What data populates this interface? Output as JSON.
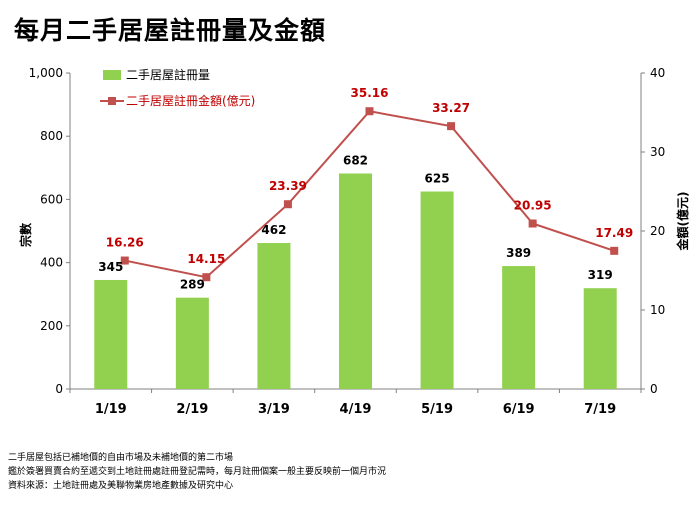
{
  "page_title": "每月二手居屋註冊量及金額",
  "chart_data": {
    "type": "bar",
    "categories": [
      "1/19",
      "2/19",
      "3/19",
      "4/19",
      "5/19",
      "6/19",
      "7/19"
    ],
    "series": [
      {
        "name": "二手居屋註冊量",
        "type": "bar",
        "axis": "left",
        "color": "#92d050",
        "values": [
          345,
          289,
          462,
          682,
          625,
          389,
          319
        ]
      },
      {
        "name": "二手居屋註冊金額(億元)",
        "type": "line",
        "axis": "right",
        "color": "#c0504d",
        "label_color": "#c00000",
        "values": [
          16.26,
          14.15,
          23.39,
          35.16,
          33.27,
          20.95,
          17.49
        ]
      }
    ],
    "ylabel": "宗數",
    "ylabel_right": "金額(億元)",
    "ylim": [
      0,
      1000
    ],
    "ylim_right": [
      0,
      40
    ],
    "yticks": [
      "0",
      "200",
      "400",
      "600",
      "800",
      "1,000"
    ],
    "yticks_right": [
      "0",
      "10",
      "20",
      "30",
      "40"
    ],
    "grid": false,
    "legend_position": "top-left"
  },
  "footnotes": [
    "二手居屋包括已補地價的自由市場及未補地價的第二市場",
    "鑑於簽署買賣合約至遞交到土地註冊處註冊登記需時，每月註冊個案一般主要反映前一個月市況",
    "資料來源：土地註冊處及美聯物業房地產數據及研究中心"
  ]
}
